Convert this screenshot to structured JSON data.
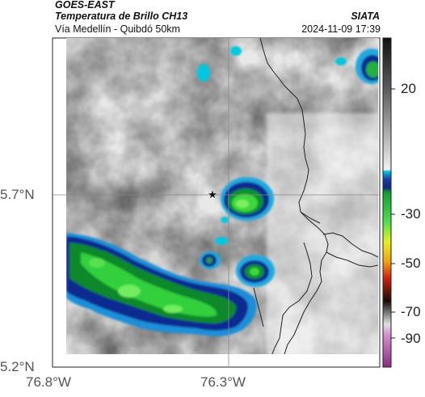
{
  "header": {
    "source": "GOES-EAST",
    "product": "Temperatura de Brillo CH13",
    "region": "Vía Medellín - Quibdó 50km",
    "agency": "SIATA",
    "datetime": "2024-11-09 17:39"
  },
  "map": {
    "lon_ticks": [
      "76.8°W",
      "76.3°W"
    ],
    "lat_ticks": [
      "5.7°N",
      "5.2°N"
    ],
    "marker_icon": "star-icon",
    "gridlines": true
  },
  "colorbar": {
    "ticks": [
      "20",
      "-30",
      "-50",
      "-70",
      "-90"
    ],
    "colors": {
      "gray_warm": "#f2f2f2",
      "gray_cold": "#4a4a4a",
      "cyan": "#00b8d8",
      "blue": "#1a3aa8",
      "navy": "#061c78",
      "green": "#2fcf3a",
      "yellow": "#e9ef1a",
      "orange": "#f08a1a",
      "red": "#d0241c",
      "dark": "#2a1410",
      "magenta": "#b04aa8"
    }
  }
}
